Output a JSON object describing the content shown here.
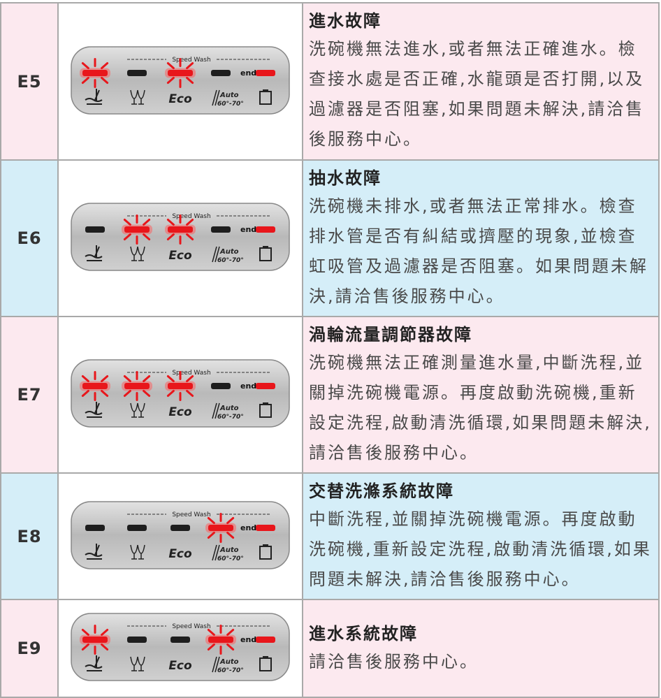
{
  "panel": {
    "speed_wash": "Speed Wash",
    "end": "end",
    "eco": "Eco",
    "auto": "Auto",
    "temp": "60°-70°"
  },
  "rows": [
    {
      "code": "E5",
      "lit": [
        0,
        2
      ],
      "title": "進水故障",
      "description": "洗碗機無法進水,或者無法正確進水。檢查接水處是否正確,水龍頭是否打開,以及過濾器是否阻塞,如果問題未解決,請洽售後服務中心。"
    },
    {
      "code": "E6",
      "lit": [
        1,
        2
      ],
      "title": "抽水故障",
      "description": "洗碗機未排水,或者無法正常排水。檢查排水管是否有糾結或擠壓的現象,並檢查虹吸管及過濾器是否阻塞。如果問題未解決,請洽售後服務中心。"
    },
    {
      "code": "E7",
      "lit": [
        0,
        1,
        2
      ],
      "title": "渦輪流量調節器故障",
      "description": "洗碗機無法正確測量進水量,中斷洗程,並關掉洗碗機電源。再度啟動洗碗機,重新設定洗程,啟動清洗循環,如果問題未解決,請洽售後服務中心。"
    },
    {
      "code": "E8",
      "lit": [
        3
      ],
      "title": "交替洗滌系統故障",
      "description": "中斷洗程,並關掉洗碗機電源。再度啟動洗碗機,重新設定洗程,啟動清洗循環,如果問題未解決,請洽售後服務中心。"
    },
    {
      "code": "E9",
      "lit": [
        0,
        3
      ],
      "title": "進水系統故障",
      "description": "請洽售後服務中心。"
    }
  ]
}
